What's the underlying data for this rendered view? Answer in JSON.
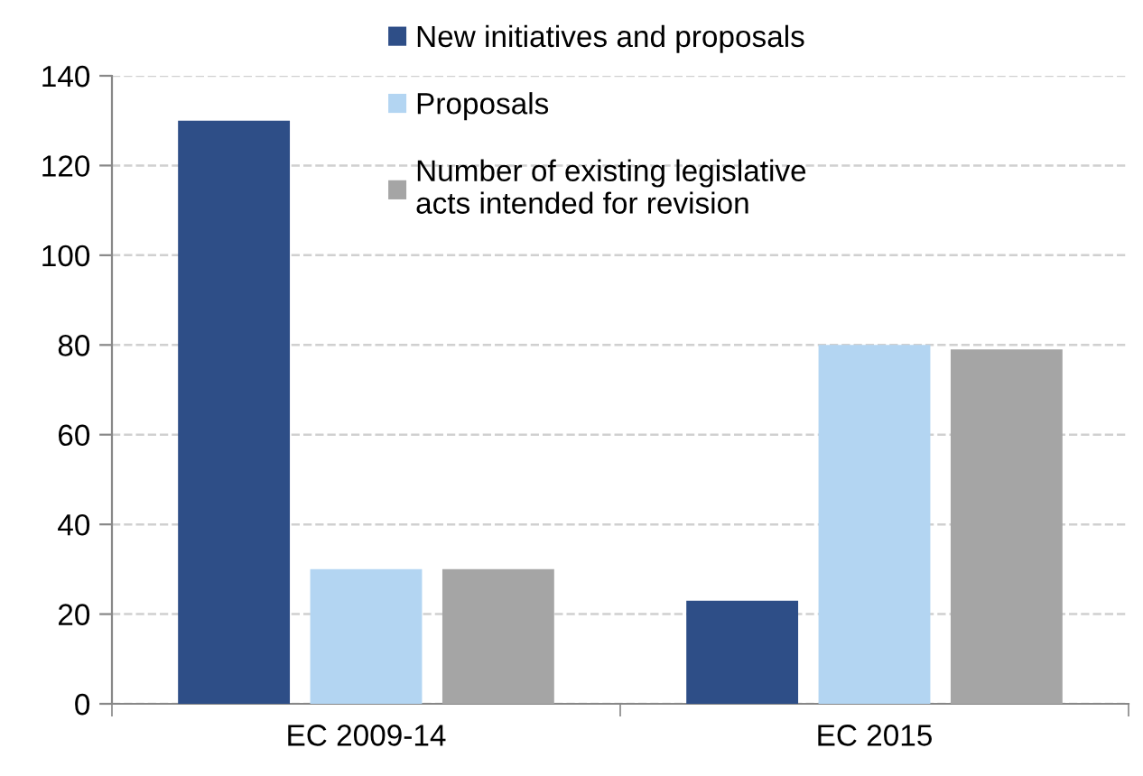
{
  "chart_data": {
    "type": "bar",
    "categories": [
      "EC 2009-14",
      "EC 2015"
    ],
    "series": [
      {
        "name": "New initiatives and proposals",
        "color": "#2e4e87",
        "values": [
          130,
          23
        ]
      },
      {
        "name": "Proposals",
        "color": "#b3d5f2",
        "values": [
          30,
          80
        ]
      },
      {
        "name": "Number of existing legislative\nacts intended for revision",
        "color": "#a5a5a5",
        "values": [
          30,
          79
        ]
      }
    ],
    "ylim": [
      0,
      140
    ],
    "yticks": [
      0,
      20,
      40,
      60,
      80,
      100,
      120,
      140
    ],
    "grid": "y",
    "legend": "top"
  }
}
